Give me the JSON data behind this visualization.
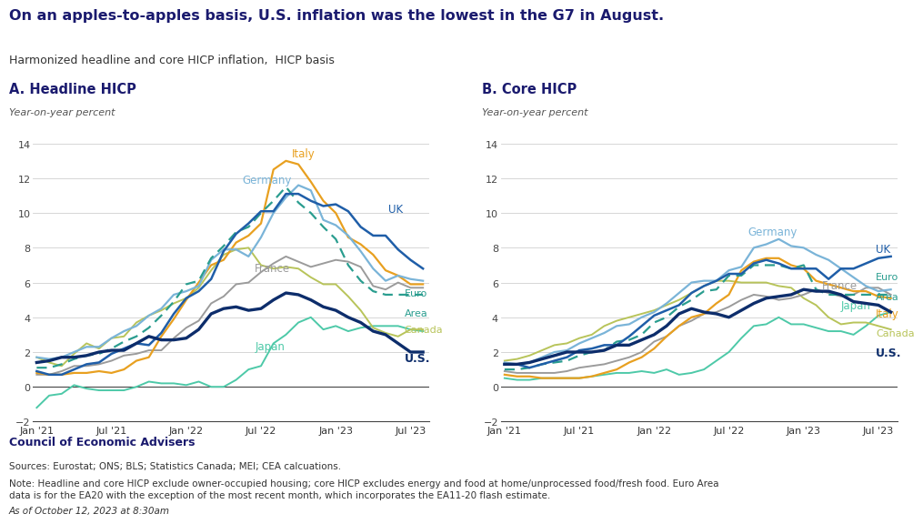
{
  "title": "On an apples-to-apples basis, U.S. inflation was the lowest in the G7 in August.",
  "subtitle": "Harmonized headline and core HICP inflation,  HICP basis",
  "panel_a_title": "A. Headline HICP",
  "panel_b_title": "B. Core HICP",
  "yaxis_label": "Year-on-year percent",
  "ylim": [
    -2,
    14
  ],
  "yticks": [
    -2,
    0,
    2,
    4,
    6,
    8,
    10,
    12,
    14
  ],
  "xtick_labels": [
    "Jan '21",
    "Jul '21",
    "Jan '22",
    "Jul '22",
    "Jan '23",
    "Jul '23"
  ],
  "footer_bold": "Council of Economic Advisers",
  "footer_source": "Sources: Eurostat; ONS; BLS; Statistics Canada; MEI; CEA calcuations.",
  "footer_note": "Note: Headline and core HICP exclude owner-occupied housing; core HICP excludes energy and food at home/unprocessed food/fresh food. Euro Area\ndata is for the EA20 with the exception of the most recent month, which incorporates the EA11-20 flash estimate.",
  "footer_date": "As of October 12, 2023 at 8:30am",
  "colors": {
    "US": "#0d2d6b",
    "UK": "#1f5ea8",
    "Germany": "#7ab4d8",
    "France": "#9b9b9b",
    "Italy": "#e8a020",
    "Canada": "#b8c45a",
    "Japan": "#4dc9a8",
    "EuroArea": "#2a9d8f"
  },
  "headline": {
    "months": [
      0,
      1,
      2,
      3,
      4,
      5,
      6,
      7,
      8,
      9,
      10,
      11,
      12,
      13,
      14,
      15,
      16,
      17,
      18,
      19,
      20,
      21,
      22,
      23,
      24,
      25,
      26,
      27,
      28,
      29,
      30,
      31
    ],
    "US": [
      1.4,
      1.5,
      1.7,
      1.7,
      1.8,
      2.0,
      2.1,
      2.1,
      2.5,
      2.9,
      2.7,
      2.7,
      2.8,
      3.3,
      4.2,
      4.5,
      4.6,
      4.4,
      4.5,
      5.0,
      5.4,
      5.3,
      5.0,
      4.6,
      4.4,
      4.0,
      3.7,
      3.2,
      3.0,
      2.5,
      2.0,
      2.0
    ],
    "UK": [
      0.9,
      0.7,
      0.7,
      1.0,
      1.3,
      1.4,
      1.9,
      2.2,
      2.5,
      2.4,
      3.1,
      4.2,
      5.1,
      5.5,
      6.2,
      7.8,
      8.8,
      9.4,
      10.1,
      10.1,
      11.1,
      11.1,
      10.7,
      10.4,
      10.5,
      10.1,
      9.2,
      8.7,
      8.7,
      7.9,
      7.3,
      6.8
    ],
    "Germany": [
      1.7,
      1.6,
      1.7,
      2.0,
      2.3,
      2.3,
      2.8,
      3.2,
      3.5,
      4.1,
      4.5,
      5.3,
      5.5,
      5.8,
      7.3,
      7.9,
      7.9,
      7.5,
      8.6,
      10.0,
      10.9,
      11.6,
      11.3,
      9.6,
      9.3,
      8.7,
      7.8,
      6.8,
      6.1,
      6.4,
      6.2,
      6.1
    ],
    "France": [
      0.7,
      0.7,
      0.9,
      1.2,
      1.2,
      1.3,
      1.5,
      1.8,
      1.9,
      2.1,
      2.1,
      2.8,
      3.4,
      3.8,
      4.8,
      5.2,
      5.9,
      6.0,
      6.6,
      7.1,
      7.5,
      7.2,
      6.9,
      7.1,
      7.3,
      7.2,
      6.9,
      5.8,
      5.6,
      6.0,
      5.7,
      5.7
    ],
    "Italy": [
      0.8,
      0.7,
      0.7,
      0.8,
      0.8,
      0.9,
      0.8,
      1.0,
      1.5,
      1.7,
      2.9,
      3.9,
      5.0,
      6.0,
      7.0,
      7.3,
      8.3,
      8.7,
      9.4,
      12.5,
      13.0,
      12.8,
      11.8,
      10.7,
      10.0,
      8.6,
      8.2,
      7.6,
      6.7,
      6.4,
      5.9,
      5.9
    ],
    "Canada": [
      1.7,
      1.4,
      1.2,
      1.9,
      2.5,
      2.2,
      2.8,
      2.9,
      3.7,
      4.1,
      4.4,
      4.8,
      5.1,
      5.7,
      6.7,
      7.6,
      7.9,
      8.0,
      7.0,
      6.8,
      6.9,
      6.8,
      6.3,
      5.9,
      5.9,
      5.2,
      4.4,
      3.4,
      3.1,
      2.9,
      3.3,
      3.3
    ],
    "Japan": [
      -1.2,
      -0.5,
      -0.4,
      0.1,
      -0.1,
      -0.2,
      -0.2,
      -0.2,
      0.0,
      0.3,
      0.2,
      0.2,
      0.1,
      0.3,
      0.0,
      0.0,
      0.4,
      1.0,
      1.2,
      2.5,
      3.0,
      3.7,
      4.0,
      3.3,
      3.5,
      3.2,
      3.4,
      3.5,
      3.5,
      3.5,
      3.3,
      3.2
    ],
    "EuroArea": [
      1.1,
      1.1,
      1.3,
      1.6,
      1.8,
      1.9,
      2.2,
      2.6,
      2.9,
      3.4,
      4.1,
      4.9,
      5.9,
      6.1,
      7.4,
      8.1,
      8.9,
      9.2,
      10.0,
      10.7,
      11.5,
      10.6,
      10.0,
      9.2,
      8.5,
      7.0,
      6.1,
      5.5,
      5.3,
      5.3,
      5.3,
      5.3
    ]
  },
  "core": {
    "months": [
      0,
      1,
      2,
      3,
      4,
      5,
      6,
      7,
      8,
      9,
      10,
      11,
      12,
      13,
      14,
      15,
      16,
      17,
      18,
      19,
      20,
      21,
      22,
      23,
      24,
      25,
      26,
      27,
      28,
      29,
      30,
      31
    ],
    "US": [
      1.3,
      1.3,
      1.4,
      1.6,
      1.8,
      2.0,
      2.0,
      2.0,
      2.1,
      2.4,
      2.4,
      2.7,
      3.0,
      3.5,
      4.2,
      4.5,
      4.3,
      4.2,
      4.0,
      4.4,
      4.8,
      5.1,
      5.2,
      5.3,
      5.6,
      5.5,
      5.5,
      5.3,
      4.9,
      4.8,
      4.7,
      4.3
    ],
    "UK": [
      1.3,
      1.3,
      1.1,
      1.3,
      1.5,
      1.7,
      2.1,
      2.2,
      2.4,
      2.4,
      2.9,
      3.5,
      4.1,
      4.4,
      4.7,
      5.4,
      5.8,
      6.1,
      6.5,
      6.5,
      7.1,
      7.3,
      7.1,
      6.8,
      6.8,
      6.8,
      6.2,
      6.8,
      6.8,
      7.1,
      7.4,
      7.5
    ],
    "Germany": [
      1.4,
      1.3,
      1.4,
      1.7,
      2.0,
      2.1,
      2.5,
      2.8,
      3.1,
      3.5,
      3.6,
      4.0,
      4.3,
      4.8,
      5.4,
      6.0,
      6.1,
      6.1,
      6.7,
      6.9,
      8.0,
      8.2,
      8.5,
      8.1,
      8.0,
      7.6,
      7.3,
      6.8,
      6.3,
      5.8,
      5.5,
      5.6
    ],
    "France": [
      0.9,
      0.8,
      0.8,
      0.8,
      0.8,
      0.9,
      1.1,
      1.2,
      1.3,
      1.5,
      1.7,
      2.0,
      2.6,
      2.9,
      3.5,
      3.8,
      4.2,
      4.3,
      4.6,
      5.0,
      5.3,
      5.2,
      5.0,
      5.1,
      5.3,
      5.6,
      5.4,
      5.2,
      5.3,
      5.7,
      5.7,
      5.3
    ],
    "Italy": [
      0.7,
      0.6,
      0.6,
      0.5,
      0.5,
      0.5,
      0.5,
      0.6,
      0.8,
      1.0,
      1.4,
      1.7,
      2.2,
      2.9,
      3.5,
      4.0,
      4.2,
      4.8,
      5.3,
      6.7,
      7.2,
      7.4,
      7.4,
      7.0,
      6.8,
      6.1,
      5.9,
      5.7,
      5.5,
      5.5,
      5.2,
      5.1
    ],
    "Canada": [
      1.5,
      1.6,
      1.8,
      2.1,
      2.4,
      2.5,
      2.8,
      3.0,
      3.5,
      3.8,
      4.0,
      4.2,
      4.4,
      4.7,
      5.0,
      5.4,
      5.8,
      6.1,
      6.1,
      6.0,
      6.0,
      6.0,
      5.8,
      5.7,
      5.1,
      4.7,
      4.0,
      3.6,
      3.7,
      3.7,
      3.5,
      3.3
    ],
    "Japan": [
      0.5,
      0.4,
      0.4,
      0.5,
      0.5,
      0.5,
      0.5,
      0.6,
      0.7,
      0.8,
      0.8,
      0.9,
      0.8,
      1.0,
      0.7,
      0.8,
      1.0,
      1.5,
      2.0,
      2.8,
      3.5,
      3.6,
      4.0,
      3.6,
      3.6,
      3.4,
      3.2,
      3.2,
      3.0,
      3.5,
      4.1,
      4.3
    ],
    "EuroArea": [
      1.0,
      1.0,
      1.1,
      1.3,
      1.4,
      1.5,
      1.8,
      2.0,
      2.1,
      2.6,
      2.7,
      3.0,
      3.7,
      4.0,
      4.6,
      5.0,
      5.5,
      5.6,
      6.4,
      6.4,
      7.0,
      7.0,
      7.0,
      6.8,
      7.0,
      5.6,
      5.3,
      5.3,
      5.3,
      5.3,
      5.3,
      5.3
    ]
  }
}
